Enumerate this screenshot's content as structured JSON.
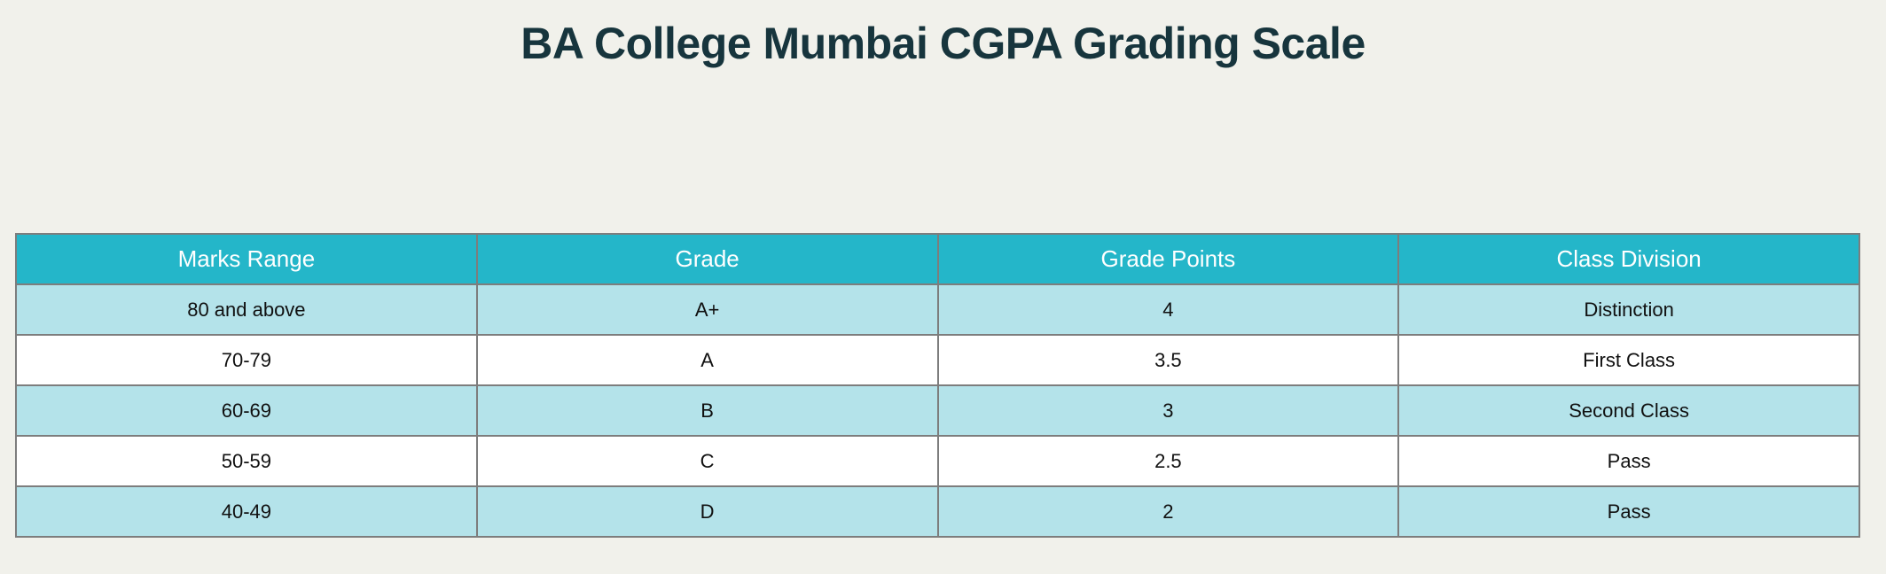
{
  "page": {
    "title": "BA College Mumbai CGPA Grading Scale"
  },
  "colors": {
    "background": "#f1f1eb",
    "title": "#17353d",
    "header_bg": "#24b6c9",
    "header_text": "#ffffff",
    "row_even_bg": "#b4e3ea",
    "row_odd_bg": "#ffffff",
    "cell_text": "#101010",
    "border": "#7d7d7d"
  },
  "table": {
    "columns": [
      "Marks Range",
      "Grade",
      "Grade Points",
      "Class Division"
    ],
    "rows": [
      [
        "80 and above",
        "A+",
        "4",
        "Distinction"
      ],
      [
        "70-79",
        "A",
        "3.5",
        "First Class"
      ],
      [
        "60-69",
        "B",
        "3",
        "Second Class"
      ],
      [
        "50-59",
        "C",
        "2.5",
        "Pass"
      ],
      [
        "40-49",
        "D",
        "2",
        "Pass"
      ]
    ]
  },
  "chart_data": {
    "type": "table",
    "title": "BA College Mumbai CGPA Grading Scale",
    "columns": [
      "Marks Range",
      "Grade",
      "Grade Points",
      "Class Division"
    ],
    "rows": [
      [
        "80 and above",
        "A+",
        4,
        "Distinction"
      ],
      [
        "70-79",
        "A",
        3.5,
        "First Class"
      ],
      [
        "60-69",
        "B",
        3,
        "Second Class"
      ],
      [
        "50-59",
        "C",
        2.5,
        "Pass"
      ],
      [
        "40-49",
        "D",
        2,
        "Pass"
      ]
    ],
    "layout": {
      "title_position": "top-center",
      "header_fill": "#24b6c9",
      "alt_row_fill": "#b4e3ea",
      "row_fill": "#ffffff",
      "grid": true
    }
  }
}
